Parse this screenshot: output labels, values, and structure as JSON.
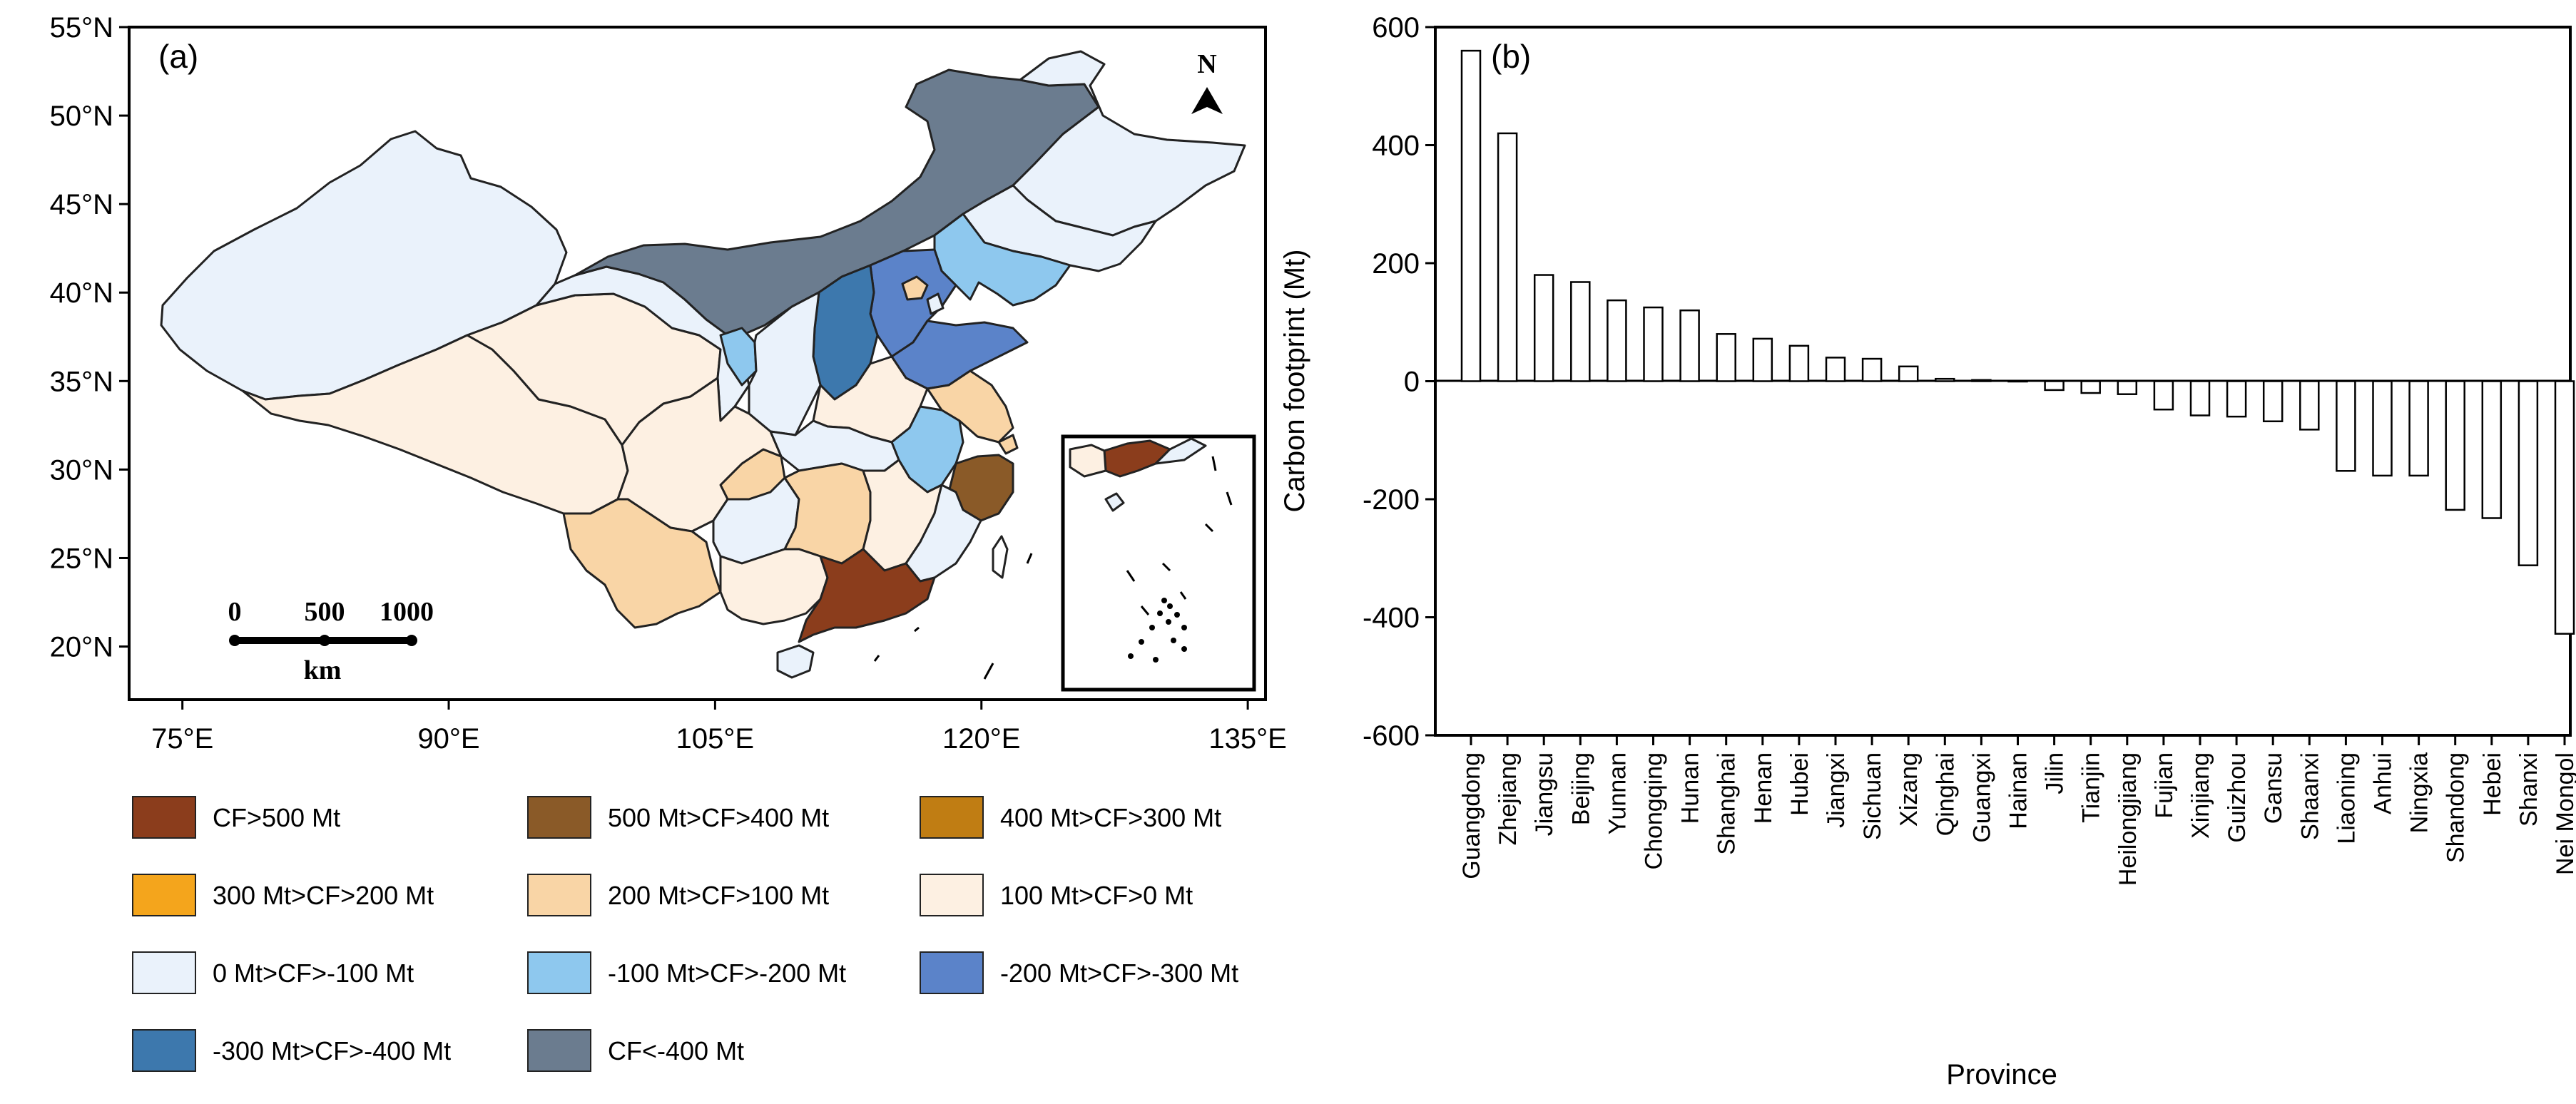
{
  "chart_data": [
    {
      "type": "choropleth-map",
      "panel_label": "(a)",
      "lat_ticks": [
        "55°N",
        "50°N",
        "45°N",
        "40°N",
        "35°N",
        "30°N",
        "25°N",
        "20°N"
      ],
      "lon_ticks": [
        "75°E",
        "90°E",
        "105°E",
        "120°E",
        "135°E"
      ],
      "lon_range": [
        72,
        136
      ],
      "lat_range": [
        17,
        55
      ],
      "north_label": "N",
      "scale_bar": {
        "ticks": [
          "0",
          "500",
          "1000"
        ],
        "unit": "km"
      },
      "classes": [
        {
          "label": "CF>500 Mt",
          "color": "#8b3d1c"
        },
        {
          "label": "500 Mt>CF>400 Mt",
          "color": "#8a5a28"
        },
        {
          "label": "400 Mt>CF>300 Mt",
          "color": "#c07d13"
        },
        {
          "label": "300 Mt>CF>200 Mt",
          "color": "#f4a51c"
        },
        {
          "label": "200 Mt>CF>100 Mt",
          "color": "#f9d5a6"
        },
        {
          "label": "100 Mt>CF>0 Mt",
          "color": "#fdf0e2"
        },
        {
          "label": "0 Mt>CF>-100 Mt",
          "color": "#eaf2fb"
        },
        {
          "label": "-100 Mt>CF>-200 Mt",
          "color": "#8ec8ee"
        },
        {
          "label": "-200 Mt>CF>-300 Mt",
          "color": "#5b83c9"
        },
        {
          "label": "-300 Mt>CF>-400 Mt",
          "color": "#3d78ad"
        },
        {
          "label": "CF<-400 Mt",
          "color": "#6b7c8f"
        }
      ]
    },
    {
      "type": "bar",
      "panel_label": "(b)",
      "xlabel": "Province",
      "ylabel": "Carbon footprint (Mt)",
      "ylim": [
        -600,
        600
      ],
      "yticks": [
        600,
        400,
        200,
        0,
        -200,
        -400,
        -600
      ],
      "categories": [
        "Guangdong",
        "Zhejiang",
        "Jiangsu",
        "Beijing",
        "Yunnan",
        "Chongqing",
        "Hunan",
        "Shanghai",
        "Henan",
        "Hubei",
        "Jiangxi",
        "Sichuan",
        "Xizang",
        "Qinghai",
        "Guangxi",
        "Hainan",
        "Jilin",
        "Tianjin",
        "Heilongjiang",
        "Fujian",
        "Xinjiang",
        "Guizhou",
        "Gansu",
        "Shaanxi",
        "Liaoning",
        "Anhui",
        "Ningxia",
        "Shandong",
        "Hebei",
        "Shanxi",
        "Nei Mongol"
      ],
      "values": [
        560,
        420,
        180,
        168,
        137,
        125,
        120,
        80,
        72,
        60,
        40,
        38,
        25,
        4,
        2,
        0,
        -15,
        -20,
        -22,
        -48,
        -58,
        -60,
        -68,
        -82,
        -152,
        -160,
        -160,
        -218,
        -232,
        -312,
        -428
      ]
    }
  ]
}
